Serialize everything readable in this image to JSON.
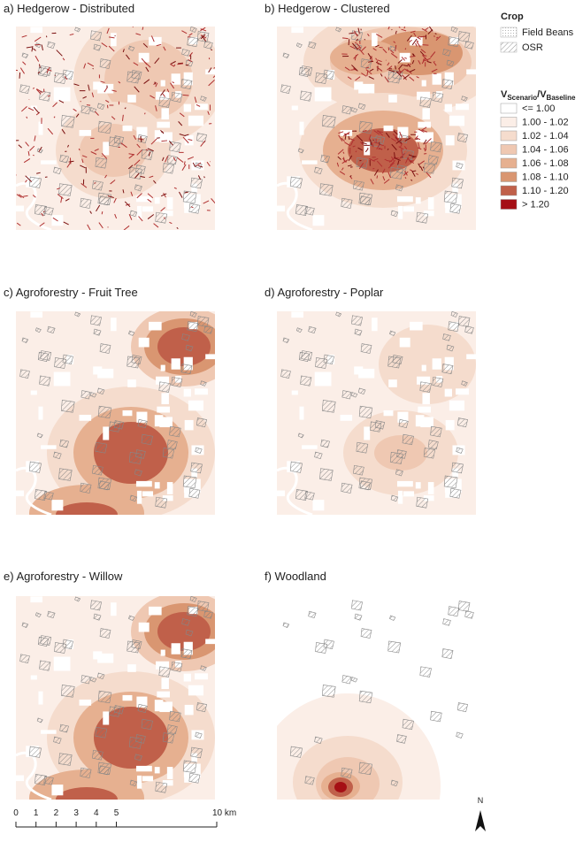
{
  "panels": [
    {
      "label": "a) Hedgerow - Distributed"
    },
    {
      "label": "b) Hedgerow - Clustered"
    },
    {
      "label": "c) Agroforestry - Fruit Tree"
    },
    {
      "label": "d) Agroforestry - Poplar"
    },
    {
      "label": "e) Agroforestry - Willow"
    },
    {
      "label": "f) Woodland"
    }
  ],
  "legend": {
    "crop_title": "Crop",
    "crop_items": [
      "Field Beans",
      "OSR"
    ],
    "ratio_title": {
      "v1": "V",
      "sub1": "Scenario",
      "v2": "/V",
      "sub2": "Baseline"
    },
    "classes": [
      {
        "label": "<= 1.00",
        "color": "#ffffff"
      },
      {
        "label": "1.00 - 1.02",
        "color": "#fbeee7"
      },
      {
        "label": "1.02 - 1.04",
        "color": "#f5dccd"
      },
      {
        "label": "1.04 - 1.06",
        "color": "#efc8b2"
      },
      {
        "label": "1.06 - 1.08",
        "color": "#e6b090"
      },
      {
        "label": "1.08 - 1.10",
        "color": "#d99671"
      },
      {
        "label": "1.10 - 1.20",
        "color": "#c0604a"
      },
      {
        "label": "> 1.20",
        "color": "#a50f15"
      }
    ]
  },
  "scale_bar": {
    "ticks": [
      "0",
      "1",
      "2",
      "3",
      "4",
      "5"
    ],
    "unit_label": "10 km"
  },
  "north_arrow": "N"
}
